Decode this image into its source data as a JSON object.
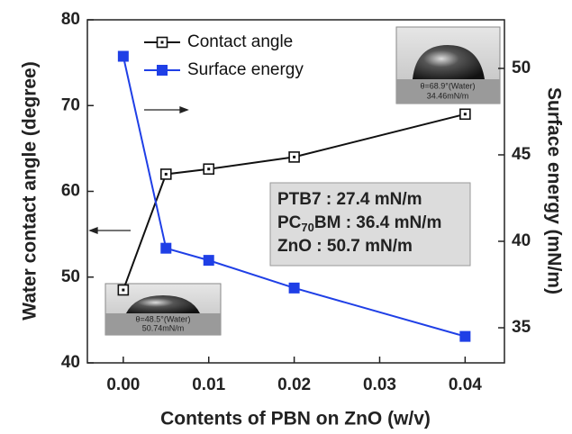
{
  "chart_data": {
    "type": "line",
    "x_label": "Contents of PBN on ZnO (w/v)",
    "y_label": "Water contact angle (degree)",
    "y2_label": "Surface energy (mN/m)",
    "x": [
      0,
      0.005,
      0.01,
      0.02,
      0.04
    ],
    "series": [
      {
        "name": "Contact angle",
        "color": "#111111",
        "marker": "open-square",
        "values": [
          48.5,
          62,
          62.6,
          64,
          69
        ]
      },
      {
        "name": "Surface energy",
        "color": "#1f3fe6",
        "marker": "filled-square",
        "axis": "y2",
        "values": [
          50.7,
          39.6,
          38.9,
          37.3,
          34.5
        ]
      }
    ],
    "xlim": [
      -0.0042,
      0.0446
    ],
    "xticks": [
      {
        "value": 0,
        "label": "0.00"
      },
      {
        "value": 0.01,
        "label": "0.01"
      },
      {
        "value": 0.02,
        "label": "0.02"
      },
      {
        "value": 0.03,
        "label": "0.03"
      },
      {
        "value": 0.04,
        "label": "0.04"
      }
    ],
    "ylim": [
      40,
      80
    ],
    "yticks": [
      40,
      50,
      60,
      70,
      80
    ],
    "y2lim": [
      32.97,
      52.81
    ],
    "y2ticks": [
      35,
      40,
      45,
      50
    ],
    "annotation_box": {
      "line1": "PTB7 : 27.4 mN/m",
      "line2_main": "PC",
      "line2_sub": "70",
      "line2_rest": "BM : 36.4 mN/m",
      "line3": "ZnO : 50.7 mN/m"
    },
    "inset_top": {
      "line1": "θ=68.9°(Water)",
      "line2": "34.46mN/m"
    },
    "inset_bottom": {
      "line1": "θ=48.5°(Water)",
      "line2": "50.74mN/m"
    }
  }
}
